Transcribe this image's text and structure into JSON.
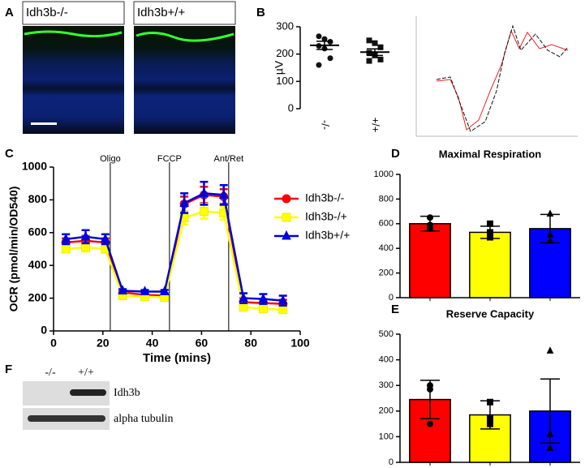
{
  "letters": [
    "A",
    "B",
    "C",
    "D",
    "E",
    "F"
  ],
  "images": [
    "Idh3b-/-",
    "Idh3b+/+"
  ],
  "blot": {
    "lanes": [
      "-/-",
      "+/+"
    ],
    "bands": [
      "Idh3b",
      "alpha tubulin"
    ]
  },
  "chart_data": [
    {
      "type": "dot",
      "ylabel": "µV",
      "categories": [
        "-/-",
        "+/+"
      ],
      "markers": [
        "circle",
        "square"
      ],
      "points": [
        [
          265,
          255,
          245,
          230,
          220,
          185,
          160
        ],
        [
          250,
          240,
          225,
          205,
          195,
          180,
          175
        ]
      ],
      "means": [
        232,
        207
      ],
      "errors": [
        15,
        12
      ],
      "ylim": [
        0,
        300
      ],
      "yticks": [
        0,
        100,
        200,
        300
      ]
    },
    {
      "type": "line",
      "xlabel": "Time (mins)",
      "ylabel": "OCR  (pmol/min/OD540)",
      "x": [
        5,
        13,
        21,
        28,
        37,
        45,
        53,
        61,
        69,
        77,
        85,
        93
      ],
      "series": [
        {
          "name": "Idh3b-/-",
          "color": "#ff0000",
          "marker": "circle",
          "values": [
            540,
            550,
            540,
            235,
            220,
            215,
            775,
            830,
            820,
            175,
            170,
            165
          ],
          "errors": [
            25,
            30,
            25,
            10,
            10,
            10,
            45,
            50,
            45,
            25,
            25,
            25
          ]
        },
        {
          "name": "Idh3b-/+",
          "color": "#ffff00",
          "marker": "square",
          "values": [
            500,
            510,
            500,
            215,
            210,
            205,
            690,
            730,
            720,
            145,
            135,
            130
          ],
          "errors": [
            20,
            25,
            20,
            10,
            10,
            10,
            40,
            45,
            40,
            20,
            20,
            20
          ]
        },
        {
          "name": "Idh3b+/+",
          "color": "#0000dd",
          "marker": "triangle",
          "values": [
            560,
            575,
            560,
            245,
            240,
            240,
            780,
            840,
            830,
            200,
            195,
            185
          ],
          "errors": [
            30,
            40,
            30,
            10,
            10,
            10,
            60,
            70,
            60,
            30,
            30,
            30
          ]
        }
      ],
      "annotations": [
        {
          "x": 23,
          "text": "Oligo"
        },
        {
          "x": 47,
          "text": "FCCP"
        },
        {
          "x": 71,
          "text": "Ant/Ret"
        }
      ],
      "xlim": [
        0,
        100
      ],
      "xticks": [
        0,
        20,
        40,
        60,
        80,
        100
      ],
      "ylim": [
        0,
        1000
      ],
      "yticks": [
        0,
        200,
        400,
        600,
        800,
        1000
      ]
    },
    {
      "type": "bar",
      "title": "Maximal Respiration",
      "colors": [
        "#ff0000",
        "#ffff00",
        "#0000ff"
      ],
      "markers": [
        "circle",
        "square",
        "triangle"
      ],
      "values": [
        600,
        530,
        560
      ],
      "errors": [
        60,
        50,
        115
      ],
      "points": [
        [
          650,
          590,
          560
        ],
        [
          600,
          530,
          490
        ],
        [
          680,
          510,
          460
        ]
      ],
      "ylim": [
        0,
        1000
      ],
      "yticks": [
        0,
        200,
        400,
        600,
        800,
        1000
      ]
    },
    {
      "type": "bar",
      "title": "Reserve Capacity",
      "colors": [
        "#ff0000",
        "#ffff00",
        "#0000ff"
      ],
      "markers": [
        "circle",
        "square",
        "triangle"
      ],
      "values": [
        245,
        185,
        200
      ],
      "errors": [
        75,
        55,
        125
      ],
      "points": [
        [
          300,
          285,
          150
        ],
        [
          235,
          170,
          150
        ],
        [
          435,
          110,
          55
        ]
      ],
      "ylim": [
        0,
        500
      ],
      "yticks": [
        0,
        100,
        200,
        300,
        400,
        500
      ]
    }
  ]
}
